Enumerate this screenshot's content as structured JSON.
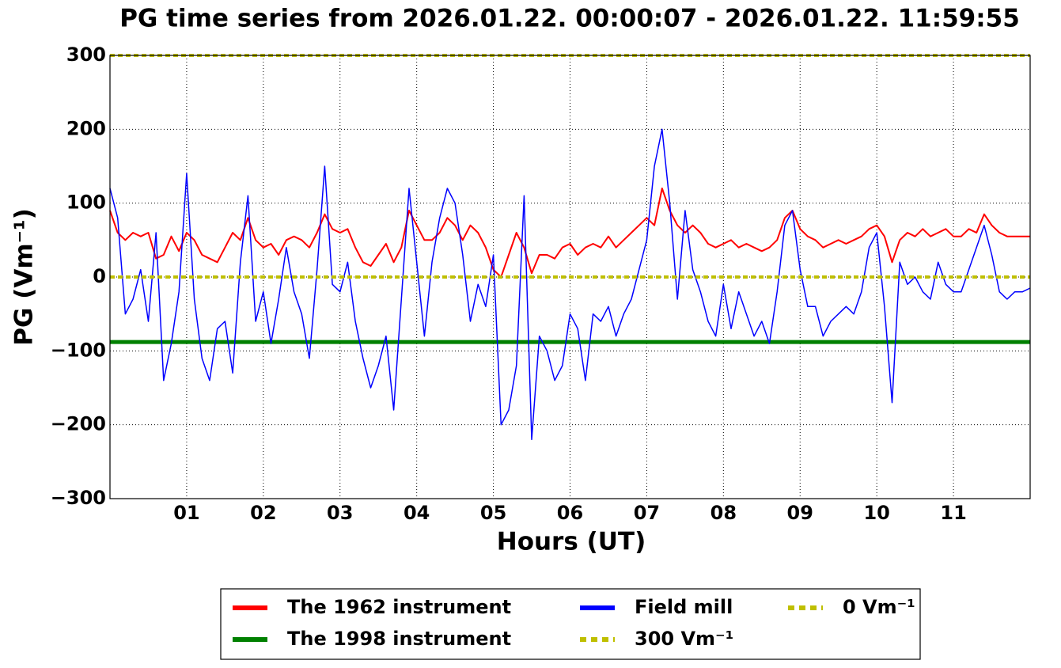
{
  "chart_data": {
    "type": "line",
    "title": "PG time series from 2026.01.22. 00:00:07 - 2026.01.22. 11:59:55",
    "x_label": "Hours (UT)",
    "y_label": "PG (Vm⁻¹)",
    "xlim": [
      0,
      12
    ],
    "xticks": [
      {
        "value": 1,
        "label": "01"
      },
      {
        "value": 2,
        "label": "02"
      },
      {
        "value": 3,
        "label": "03"
      },
      {
        "value": 4,
        "label": "04"
      },
      {
        "value": 5,
        "label": "05"
      },
      {
        "value": 6,
        "label": "06"
      },
      {
        "value": 7,
        "label": "07"
      },
      {
        "value": 8,
        "label": "08"
      },
      {
        "value": 9,
        "label": "09"
      },
      {
        "value": 10,
        "label": "10"
      },
      {
        "value": 11,
        "label": "11"
      }
    ],
    "ylim": [
      -300,
      300
    ],
    "yticks": [
      {
        "value": -300,
        "label": "−300"
      },
      {
        "value": -200,
        "label": "−200"
      },
      {
        "value": -100,
        "label": "−100"
      },
      0,
      100,
      200,
      300
    ],
    "grid": true,
    "legend": "lower center",
    "x": [
      0,
      0.1,
      0.2,
      0.3,
      0.4,
      0.5,
      0.6,
      0.7,
      0.8,
      0.9,
      1,
      1.1,
      1.2,
      1.3,
      1.4,
      1.5,
      1.6,
      1.7,
      1.8,
      1.9,
      2,
      2.1,
      2.2,
      2.3,
      2.4,
      2.5,
      2.6,
      2.7,
      2.8,
      2.9,
      3,
      3.1,
      3.2,
      3.3,
      3.4,
      3.5,
      3.6,
      3.7,
      3.8,
      3.9,
      4,
      4.1,
      4.2,
      4.3,
      4.4,
      4.5,
      4.6,
      4.7,
      4.8,
      4.9,
      5,
      5.1,
      5.2,
      5.3,
      5.4,
      5.5,
      5.6,
      5.7,
      5.8,
      5.9,
      6,
      6.1,
      6.2,
      6.3,
      6.4,
      6.5,
      6.6,
      6.7,
      6.8,
      6.9,
      7,
      7.1,
      7.2,
      7.3,
      7.4,
      7.5,
      7.6,
      7.7,
      7.8,
      7.9,
      8,
      8.1,
      8.2,
      8.3,
      8.4,
      8.5,
      8.6,
      8.7,
      8.8,
      8.9,
      9,
      9.1,
      9.2,
      9.3,
      9.4,
      9.5,
      9.6,
      9.7,
      9.8,
      9.9,
      10,
      10.1,
      10.2,
      10.3,
      10.4,
      10.5,
      10.6,
      10.7,
      10.8,
      10.9,
      11,
      11.1,
      11.2,
      11.3,
      11.4,
      11.5,
      11.6,
      11.7,
      11.8,
      11.9,
      12
    ],
    "series": [
      {
        "name": "The 1962 instrument",
        "color": "#ff0000",
        "width": 2,
        "values": [
          90,
          60,
          50,
          60,
          55,
          60,
          25,
          30,
          55,
          35,
          60,
          50,
          30,
          25,
          20,
          40,
          60,
          50,
          80,
          50,
          40,
          45,
          30,
          50,
          55,
          50,
          40,
          60,
          85,
          65,
          60,
          65,
          40,
          20,
          15,
          30,
          45,
          20,
          40,
          90,
          70,
          50,
          50,
          60,
          80,
          70,
          50,
          70,
          60,
          40,
          10,
          0,
          30,
          60,
          40,
          5,
          30,
          30,
          25,
          40,
          45,
          30,
          40,
          45,
          40,
          55,
          40,
          50,
          60,
          70,
          80,
          70,
          120,
          90,
          70,
          60,
          70,
          60,
          45,
          40,
          45,
          50,
          40,
          45,
          40,
          35,
          40,
          50,
          80,
          90,
          65,
          55,
          50,
          40,
          45,
          50,
          45,
          50,
          55,
          65,
          70,
          55,
          20,
          50,
          60,
          55,
          65,
          55,
          60,
          65,
          55,
          55,
          65,
          60,
          85,
          70,
          60,
          55,
          55,
          55,
          55
        ]
      },
      {
        "name": "The 1998 instrument",
        "color": "#008000",
        "width": 5,
        "x": [
          0,
          12
        ],
        "values": [
          -88,
          -88
        ]
      },
      {
        "name": "Field mill",
        "color": "#0000ff",
        "width": 1.5,
        "values": [
          120,
          80,
          -50,
          -30,
          10,
          -60,
          60,
          -140,
          -90,
          -20,
          140,
          -30,
          -110,
          -140,
          -70,
          -60,
          -130,
          20,
          110,
          -60,
          -20,
          -90,
          -30,
          40,
          -20,
          -50,
          -110,
          10,
          150,
          -10,
          -20,
          20,
          -60,
          -110,
          -150,
          -120,
          -80,
          -180,
          -30,
          120,
          20,
          -80,
          20,
          80,
          120,
          100,
          30,
          -60,
          -10,
          -40,
          30,
          -200,
          -180,
          -120,
          110,
          -220,
          -80,
          -100,
          -140,
          -120,
          -50,
          -70,
          -140,
          -50,
          -60,
          -40,
          -80,
          -50,
          -30,
          10,
          50,
          150,
          200,
          100,
          -30,
          90,
          10,
          -20,
          -60,
          -80,
          -10,
          -70,
          -20,
          -50,
          -80,
          -60,
          -90,
          -20,
          70,
          90,
          10,
          -40,
          -40,
          -80,
          -60,
          -50,
          -40,
          -50,
          -20,
          40,
          60,
          -40,
          -170,
          20,
          -10,
          0,
          -20,
          -30,
          20,
          -10,
          -20,
          -20,
          10,
          40,
          70,
          30,
          -20,
          -30,
          -20,
          -20,
          -15
        ]
      },
      {
        "name": "300 Vm⁻¹",
        "color": "#bfbf00",
        "width": 4,
        "dash": true,
        "x": [
          0,
          12
        ],
        "values": [
          300,
          300
        ]
      },
      {
        "name": "0 Vm⁻¹",
        "color": "#bfbf00",
        "width": 4,
        "dash": true,
        "x": [
          0,
          12
        ],
        "values": [
          0,
          0
        ]
      }
    ]
  }
}
